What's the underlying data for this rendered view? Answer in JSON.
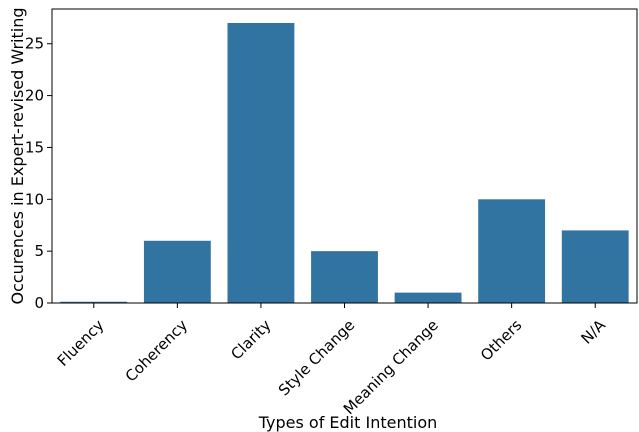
{
  "chart_data": {
    "type": "bar",
    "categories": [
      "Fluency",
      "Coherency",
      "Clarity",
      "Style Change",
      "Meaning Change",
      "Others",
      "N/A"
    ],
    "values": [
      0,
      6,
      27,
      5,
      1,
      10,
      7
    ],
    "xlabel": "Types of Edit Intention",
    "ylabel": "Occurences in Expert-revised Writing",
    "ylim": [
      0,
      28.35
    ],
    "yticks": [
      0,
      5,
      10,
      15,
      20,
      25
    ],
    "grid": false,
    "bar_color": "#3274a1"
  }
}
